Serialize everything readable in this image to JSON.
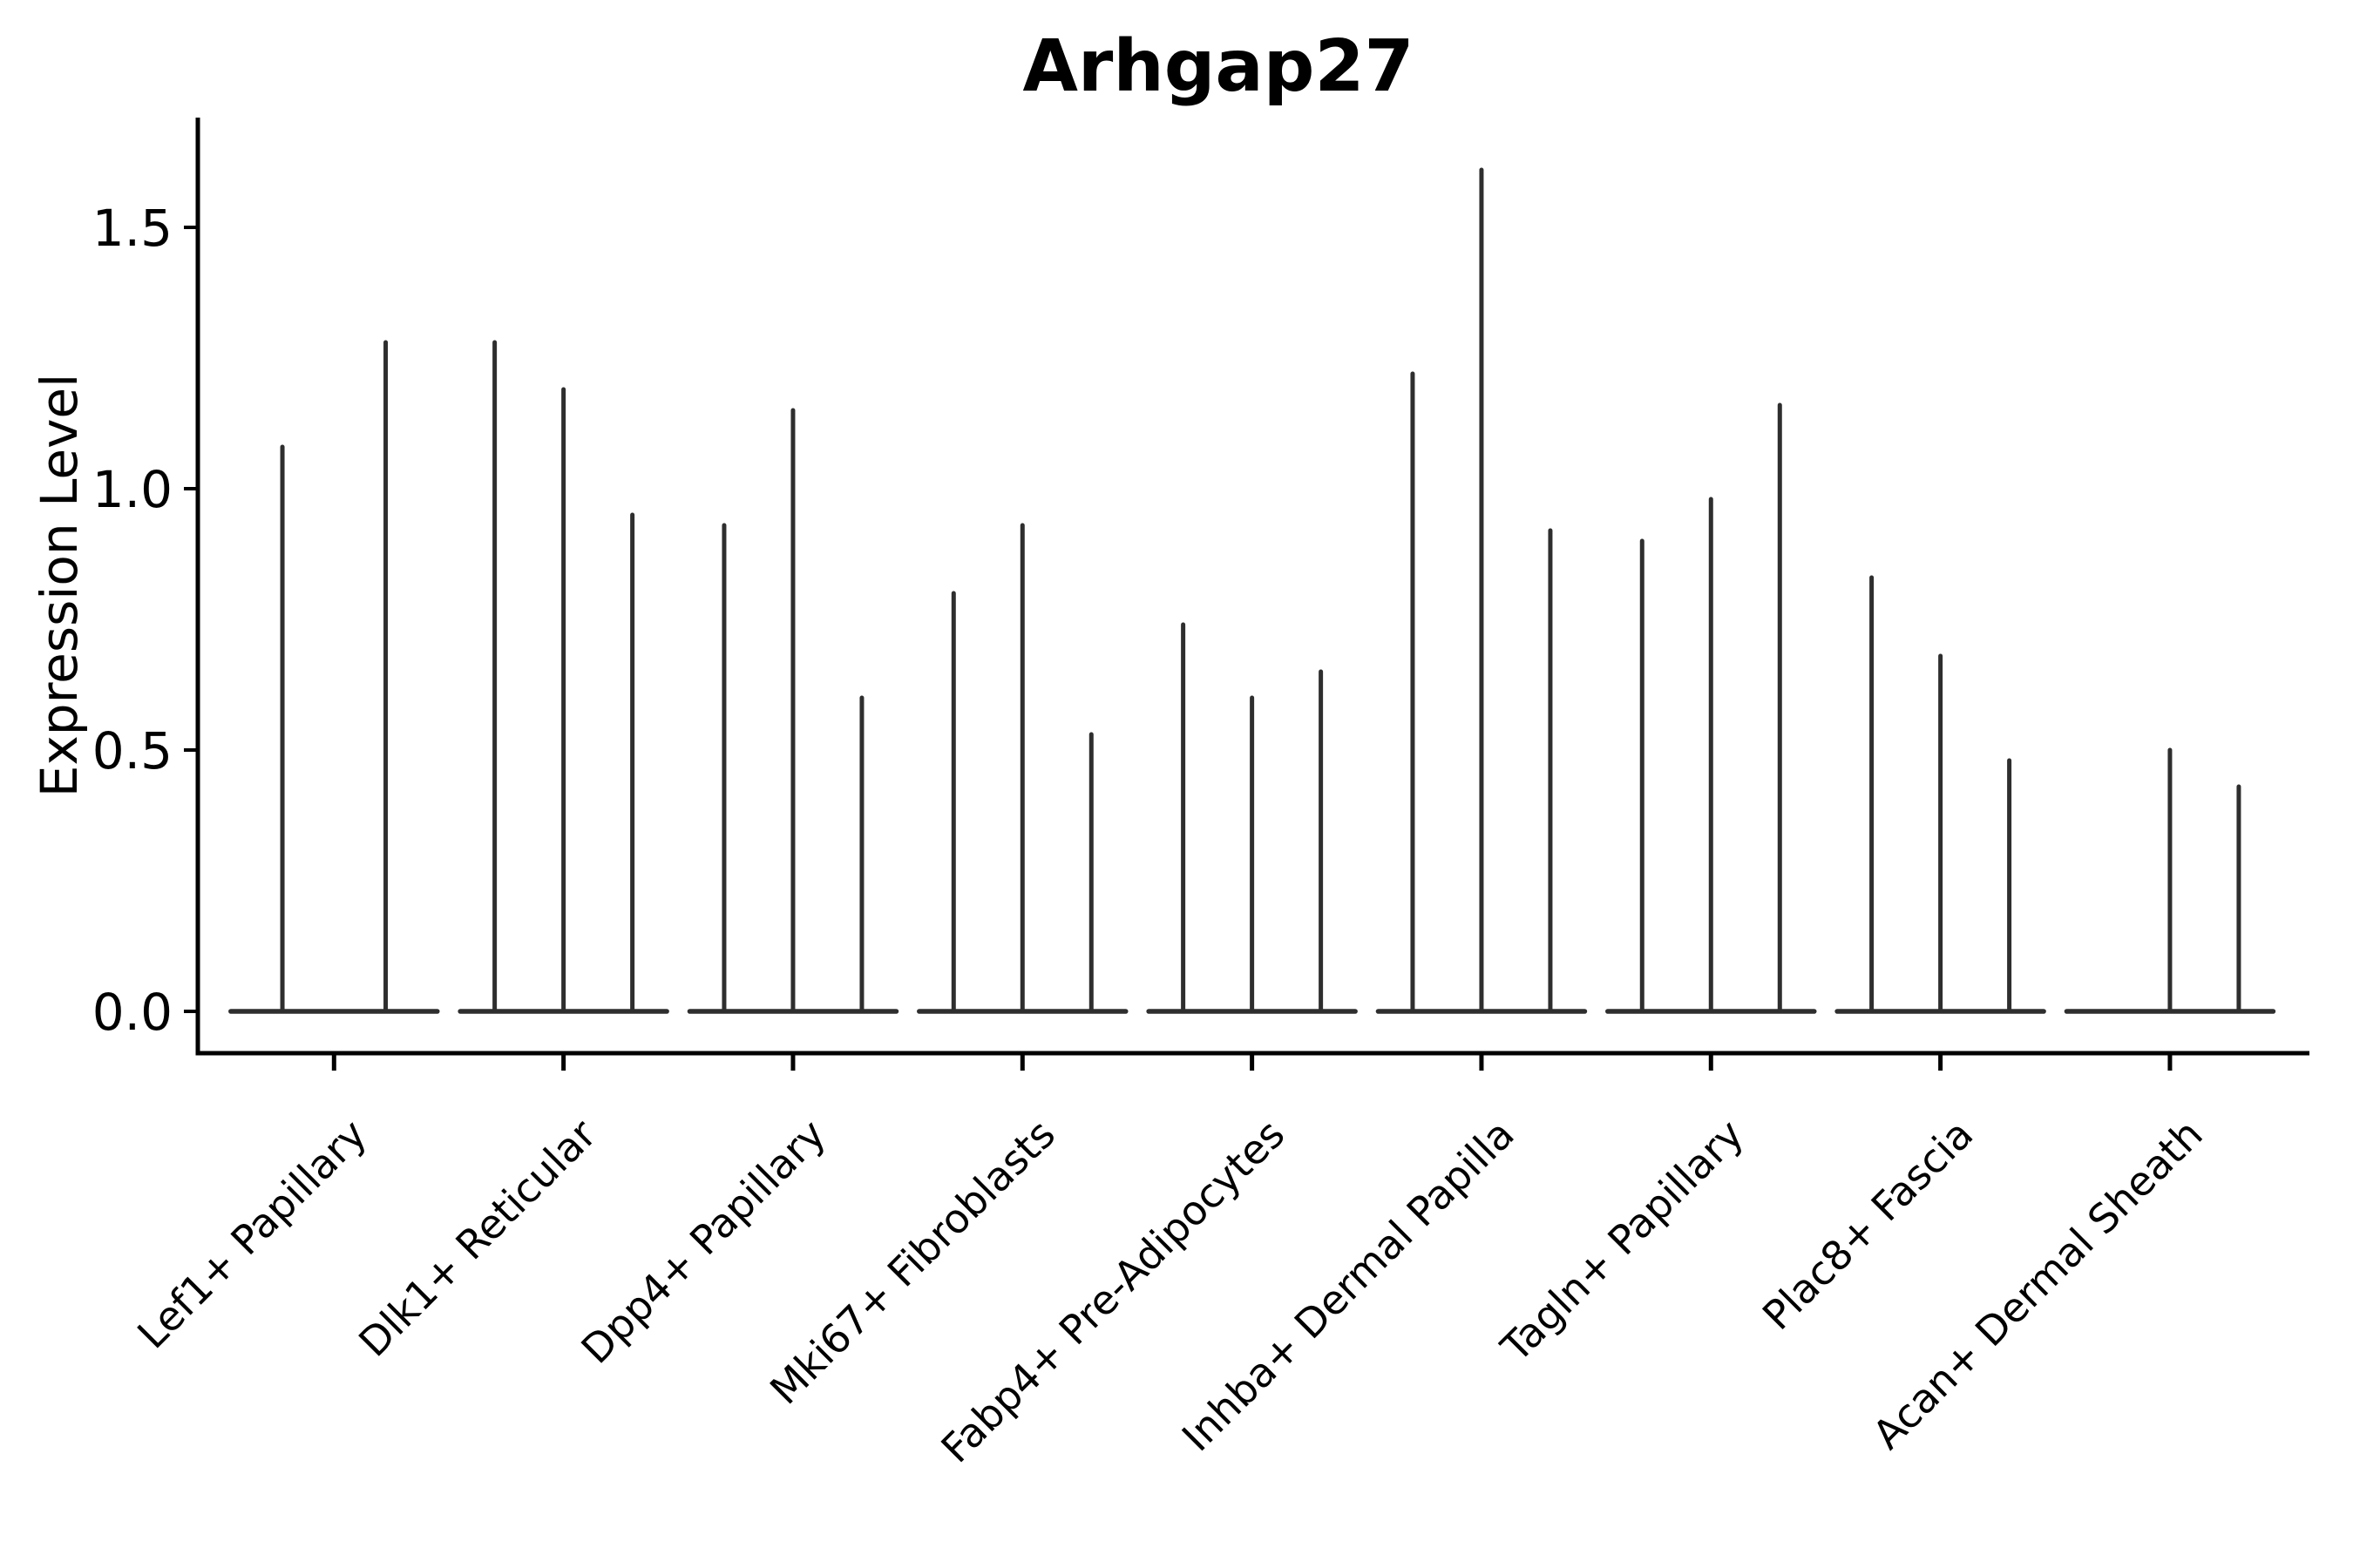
{
  "chart_data": {
    "type": "violin",
    "title": "Arhgap27",
    "ylabel": "Expression Level",
    "xlabel": "",
    "y_ticks": [
      0.0,
      0.5,
      1.0,
      1.5
    ],
    "y_tick_labels": [
      "0.0",
      "0.5",
      "1.0",
      "1.5"
    ],
    "ylim": [
      0,
      1.71
    ],
    "grid": false,
    "legend": false,
    "x_tick_rotation_deg": 45,
    "violin_style": "collapsed-spikes (violins degenerate to a flat base at 0 with a thin vertical spike to the max expression value)",
    "categories": [
      "Lef1+ Papillary",
      "Dlk1+ Reticular",
      "Dpp4+ Papillary",
      "Mki67+ Fibroblasts",
      "Fabp4+ Pre-Adipocytes",
      "Inhba+ Dermal Papilla",
      "Tagln+ Papillary",
      "Plac8+ Fascia",
      "Acan+ Dermal Sheath"
    ],
    "groups": [
      {
        "category": "Lef1+ Papillary",
        "violin_peaks": [
          1.08,
          1.28
        ]
      },
      {
        "category": "Dlk1+ Reticular",
        "violin_peaks": [
          1.28,
          1.19,
          0.95
        ]
      },
      {
        "category": "Dpp4+ Papillary",
        "violin_peaks": [
          0.93,
          1.15,
          0.6
        ]
      },
      {
        "category": "Mki67+ Fibroblasts",
        "violin_peaks": [
          0.8,
          0.93,
          0.53
        ]
      },
      {
        "category": "Fabp4+ Pre-Adipocytes",
        "violin_peaks": [
          0.74,
          0.6,
          0.65
        ]
      },
      {
        "category": "Inhba+ Dermal Papilla",
        "violin_peaks": [
          1.22,
          1.61,
          0.92
        ]
      },
      {
        "category": "Tagln+ Papillary",
        "violin_peaks": [
          0.9,
          0.98,
          1.16
        ]
      },
      {
        "category": "Plac8+ Fascia",
        "violin_peaks": [
          0.83,
          0.68,
          0.48
        ]
      },
      {
        "category": "Acan+ Dermal Sheath",
        "violin_peaks": [
          0.0,
          0.5,
          0.43
        ]
      }
    ],
    "colors": {
      "violin_stroke": "#2e2e2e",
      "axis": "#000000",
      "text": "#000000",
      "background": "#ffffff"
    }
  }
}
